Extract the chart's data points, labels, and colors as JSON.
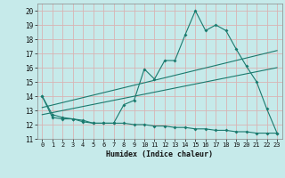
{
  "xlabel": "Humidex (Indice chaleur)",
  "ylabel": "",
  "background_color": "#c6eaea",
  "grid_color": "#d8b4b4",
  "line_color": "#1a7a6e",
  "xlim": [
    -0.5,
    23.5
  ],
  "ylim": [
    11,
    20.5
  ],
  "xticks": [
    0,
    1,
    2,
    3,
    4,
    5,
    6,
    7,
    8,
    9,
    10,
    11,
    12,
    13,
    14,
    15,
    16,
    17,
    18,
    19,
    20,
    21,
    22,
    23
  ],
  "yticks": [
    11,
    12,
    13,
    14,
    15,
    16,
    17,
    18,
    19,
    20
  ],
  "series1_x": [
    0,
    1,
    2,
    3,
    4,
    5,
    6,
    7,
    8,
    9,
    10,
    11,
    12,
    13,
    14,
    15,
    16,
    17,
    18,
    19,
    20,
    21,
    22,
    23
  ],
  "series1_y": [
    14.0,
    12.7,
    12.5,
    12.4,
    12.2,
    12.1,
    12.1,
    12.1,
    13.4,
    13.7,
    15.9,
    15.2,
    16.5,
    16.5,
    18.3,
    20.0,
    18.6,
    19.0,
    18.6,
    17.3,
    16.1,
    15.0,
    13.1,
    11.4
  ],
  "series2_x": [
    0,
    1,
    2,
    3,
    4,
    5,
    6,
    7,
    8,
    9,
    10,
    11,
    12,
    13,
    14,
    15,
    16,
    17,
    18,
    19,
    20,
    21,
    22,
    23
  ],
  "series2_y": [
    14.0,
    12.5,
    12.4,
    12.4,
    12.3,
    12.1,
    12.1,
    12.1,
    12.1,
    12.0,
    12.0,
    11.9,
    11.9,
    11.8,
    11.8,
    11.7,
    11.7,
    11.6,
    11.6,
    11.5,
    11.5,
    11.4,
    11.4,
    11.4
  ],
  "series3_x": [
    0,
    23
  ],
  "series3_y": [
    13.2,
    17.2
  ],
  "series4_x": [
    0,
    23
  ],
  "series4_y": [
    12.7,
    16.0
  ]
}
